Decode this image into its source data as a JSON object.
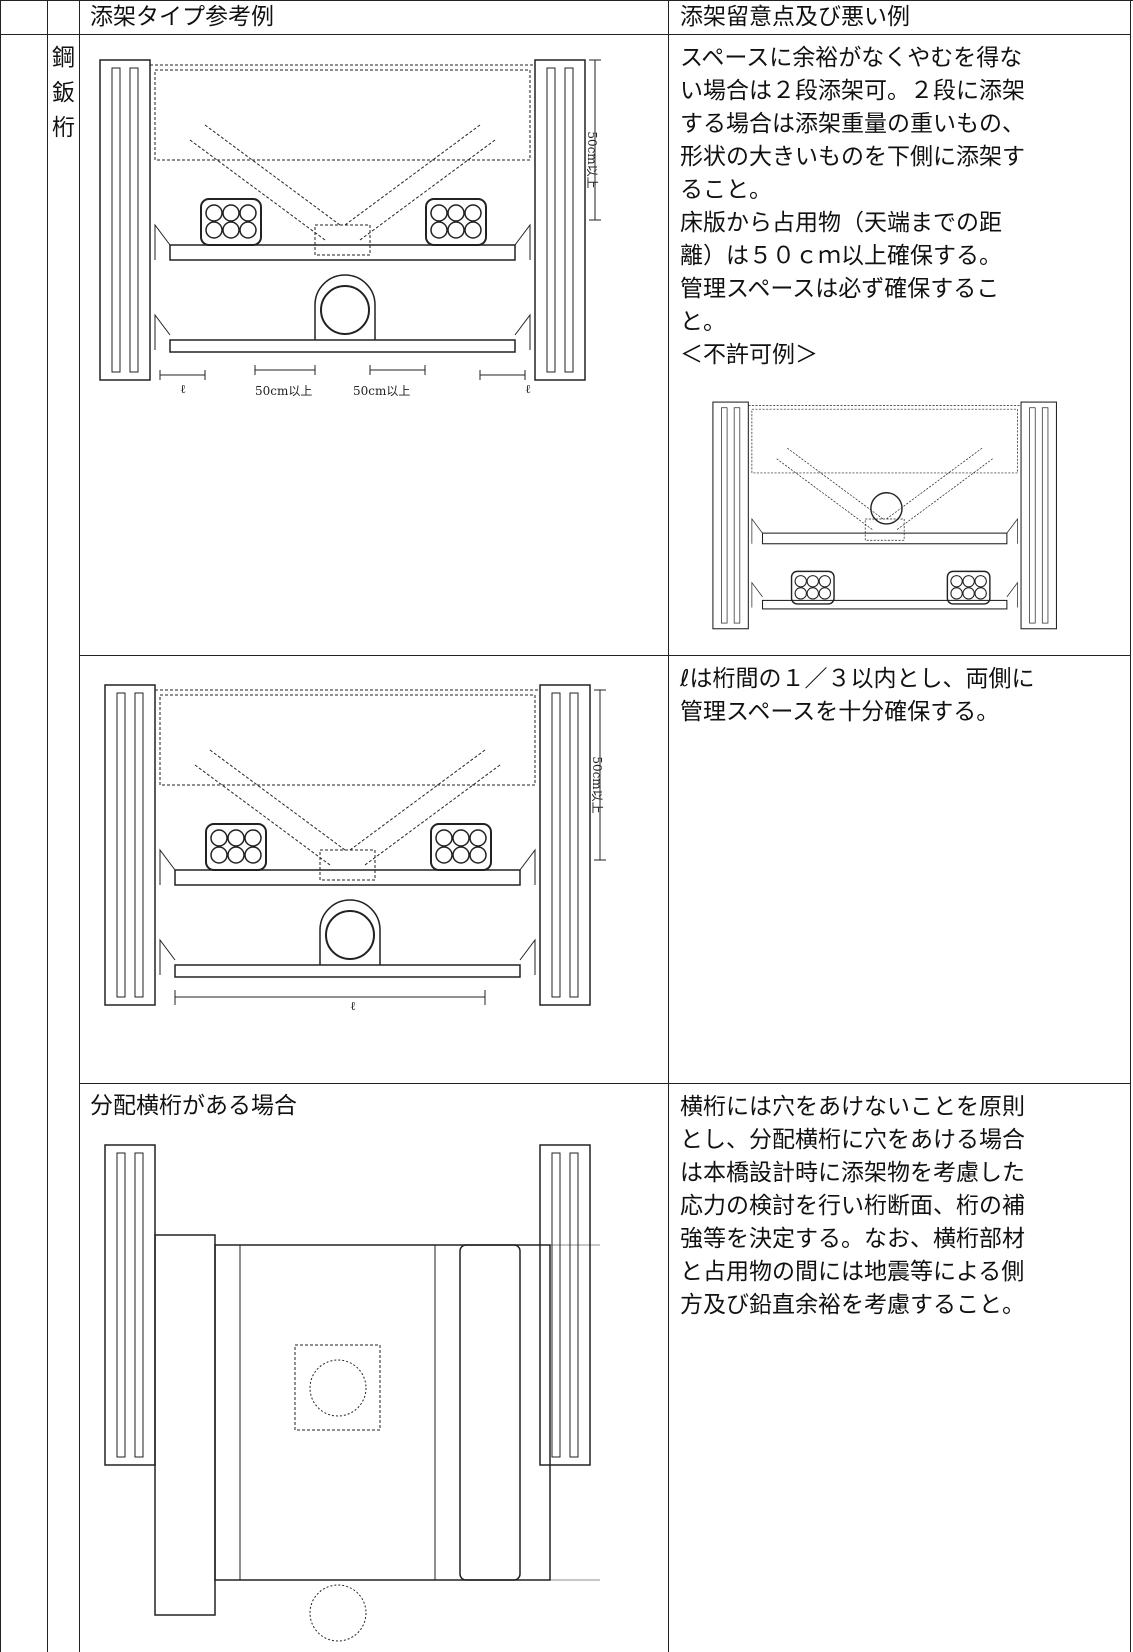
{
  "table": {
    "header": [
      "添架タイプ参考例",
      "添架留意点及び悪い例"
    ],
    "side_label": [
      "鋼",
      "鈑",
      "桁"
    ],
    "rows": [
      {
        "note": [
          "スペースに余裕がなくやむを得な",
          "い場合は２段添架可。２段に添架",
          "する場合は添架重量の重いもの、",
          "形状の大きいものを下側に添架す",
          "ること。",
          "床版から占用物（天端までの距",
          "離）は５０ｃｍ以上確保する。",
          "管理スペースは必ず確保するこ",
          "と。",
          "＜不許可例＞"
        ],
        "labels": [
          "50cm以上",
          "ℓ",
          "ℓ",
          "50cm以上",
          "50cm以上"
        ]
      },
      {
        "note": [
          "ℓは桁間の１／３以内とし、両側に",
          "管理スペースを十分確保する。"
        ],
        "labels": [
          "50cm以上",
          "ℓ"
        ]
      },
      {
        "caption": "分配横桁がある場合",
        "note": [
          "横桁には穴をあけないことを原則",
          "とし、分配横桁に穴をあける場合",
          "は本橋設計時に添架物を考慮した",
          "応力の検討を行い桁断面、桁の補",
          "強等を決定する。なお、横桁部材",
          "と占用物の間には地震等による側",
          "方及び鉛直余裕を考慮すること。"
        ]
      }
    ]
  }
}
